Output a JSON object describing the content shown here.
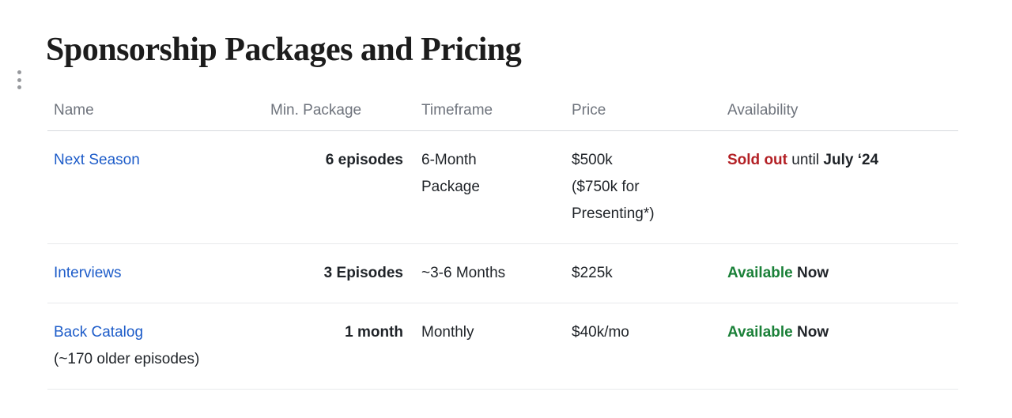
{
  "page_title": "Sponsorship Packages and Pricing",
  "icons": {
    "drag_handle": "vertical-ellipsis"
  },
  "colors": {
    "link": "#1d5cc9",
    "sold_out_red": "#b32025",
    "available_green": "#1a8038",
    "header_text": "#6e737c",
    "body_text": "#1f2328",
    "header_divider": "#d5d9dd",
    "row_divider": "#e8eaec",
    "handle_dots": "#97999d"
  },
  "table": {
    "headers": [
      "Name",
      "Min. Package",
      "Timeframe",
      "Price",
      "Availability"
    ],
    "rows": [
      {
        "name": "Next Season",
        "note": "",
        "min_package": "6 episodes",
        "timeframe": "6-Month\nPackage",
        "price": "$500k\n($750k for\nPresenting*)",
        "availability": {
          "status": "Sold out",
          "status_style": "color:#b32025",
          "middle": " until ",
          "end": "July ‘24"
        }
      },
      {
        "name": "Interviews",
        "note": "",
        "min_package": "3 Episodes",
        "timeframe": "~3-6 Months",
        "price": "$225k",
        "availability": {
          "status": "Available",
          "status_style": "color:#1a8038",
          "middle": " ",
          "end": "Now"
        }
      },
      {
        "name": "Back Catalog",
        "note": "(~170 older episodes)",
        "min_package": "1 month",
        "timeframe": "Monthly",
        "price": "$40k/mo",
        "availability": {
          "status": "Available",
          "status_style": "color:#1a8038",
          "middle": " ",
          "end": "Now"
        }
      }
    ]
  }
}
